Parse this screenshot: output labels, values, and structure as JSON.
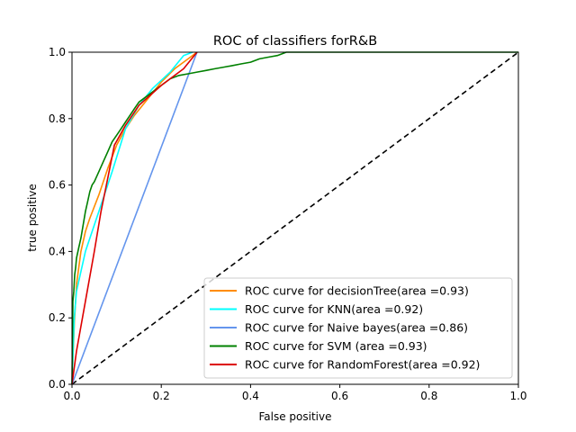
{
  "chart_data": {
    "type": "line",
    "title": "ROC of classifiers forR&B",
    "xlabel": "False positive",
    "ylabel": "true positive",
    "xlim": [
      0,
      1
    ],
    "ylim": [
      0,
      1
    ],
    "xticks": [
      "0.0",
      "0.2",
      "0.4",
      "0.6",
      "0.8",
      "1.0"
    ],
    "yticks": [
      "0.0",
      "0.2",
      "0.4",
      "0.6",
      "0.8",
      "1.0"
    ],
    "grid": false,
    "legend_position": "lower-right",
    "series": [
      {
        "name": "ROC curve for decisionTree(area =0.93)",
        "color": "#ff8c00",
        "x": [
          0,
          0.005,
          0.01,
          0.02,
          0.03,
          0.04,
          0.06,
          0.08,
          0.1,
          0.12,
          0.14,
          0.17,
          0.2,
          0.23,
          0.26,
          0.28
        ],
        "y": [
          0,
          0.18,
          0.3,
          0.4,
          0.46,
          0.5,
          0.57,
          0.65,
          0.72,
          0.77,
          0.81,
          0.86,
          0.91,
          0.95,
          0.98,
          1.0
        ]
      },
      {
        "name": "ROC curve for KNN(area =0.92)",
        "color": "#00ffff",
        "x": [
          0,
          0.005,
          0.01,
          0.03,
          0.06,
          0.09,
          0.12,
          0.15,
          0.18,
          0.22,
          0.25,
          0.27
        ],
        "y": [
          0,
          0.2,
          0.28,
          0.4,
          0.52,
          0.64,
          0.77,
          0.84,
          0.89,
          0.94,
          0.99,
          1.0
        ]
      },
      {
        "name": "ROC curve for Naive bayes(area =0.86)",
        "color": "#6495ed",
        "x": [
          0,
          0.28
        ],
        "y": [
          0,
          1.0
        ]
      },
      {
        "name": "ROC curve for SVM (area =0.93)",
        "color": "#008000",
        "x": [
          0,
          0.002,
          0.004,
          0.006,
          0.008,
          0.01,
          0.015,
          0.02,
          0.025,
          0.03,
          0.035,
          0.04,
          0.045,
          0.05,
          0.06,
          0.07,
          0.08,
          0.09,
          0.1,
          0.11,
          0.12,
          0.13,
          0.14,
          0.15,
          0.16,
          0.18,
          0.2,
          0.22,
          0.24,
          0.26,
          0.28,
          0.3,
          0.32,
          0.34,
          0.36,
          0.38,
          0.4,
          0.42,
          0.44,
          0.46,
          0.48,
          1.0
        ],
        "y": [
          0,
          0.25,
          0.28,
          0.33,
          0.35,
          0.38,
          0.41,
          0.44,
          0.48,
          0.52,
          0.55,
          0.58,
          0.6,
          0.61,
          0.64,
          0.67,
          0.7,
          0.73,
          0.75,
          0.77,
          0.79,
          0.81,
          0.83,
          0.85,
          0.86,
          0.88,
          0.9,
          0.92,
          0.93,
          0.935,
          0.94,
          0.945,
          0.95,
          0.955,
          0.96,
          0.965,
          0.97,
          0.98,
          0.985,
          0.99,
          1.0,
          1.0
        ]
      },
      {
        "name": "ROC curve for RandomForest(area =0.92)",
        "color": "#dd0000",
        "x": [
          0,
          0.01,
          0.03,
          0.05,
          0.065,
          0.08,
          0.095,
          0.12,
          0.15,
          0.2,
          0.25,
          0.28
        ],
        "y": [
          0,
          0.1,
          0.25,
          0.4,
          0.52,
          0.62,
          0.72,
          0.78,
          0.84,
          0.9,
          0.95,
          1.0
        ]
      }
    ],
    "reference_line": {
      "style": "dashed",
      "color": "#000000",
      "x": [
        0,
        1
      ],
      "y": [
        0,
        1
      ]
    }
  }
}
